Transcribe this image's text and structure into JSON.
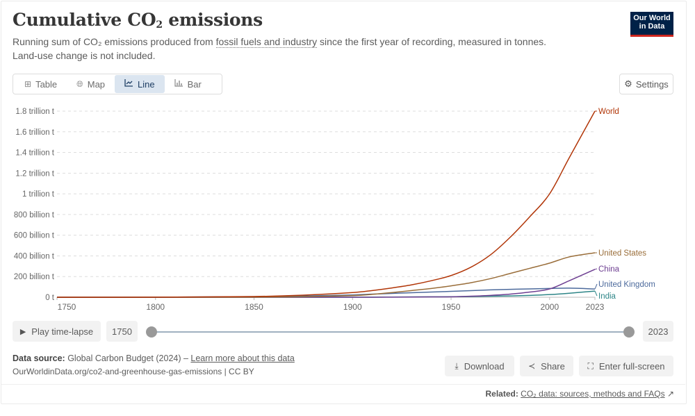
{
  "header": {
    "title_main": "Cumulative CO",
    "title_sub": "2",
    "title_end": " emissions",
    "subtitle_pre": "Running sum of CO₂ emissions produced from ",
    "subtitle_link": "fossil fuels and industry",
    "subtitle_post": " since the first year of recording, measured in tonnes.",
    "subtitle_line2": "Land-use change is not included.",
    "logo_line1": "Our World",
    "logo_line2": "in Data"
  },
  "tabs": [
    {
      "label": "Table",
      "icon": "table-icon",
      "active": false
    },
    {
      "label": "Map",
      "icon": "globe-icon",
      "active": false
    },
    {
      "label": "Line",
      "icon": "line-chart-icon",
      "active": true
    },
    {
      "label": "Bar",
      "icon": "bar-chart-icon",
      "active": false
    }
  ],
  "settings_label": "Settings",
  "chart_data": {
    "type": "line",
    "title": "Cumulative CO₂ emissions",
    "xlabel": "",
    "ylabel": "",
    "xlim": [
      1750,
      2023
    ],
    "ylim": [
      0,
      1.8
    ],
    "y_unit": "trillion t",
    "x_ticks": [
      1750,
      1800,
      1850,
      1900,
      1950,
      2000,
      2023
    ],
    "y_ticks": [
      {
        "value": 0,
        "label": "0 t"
      },
      {
        "value": 0.2,
        "label": "200 billion t"
      },
      {
        "value": 0.4,
        "label": "400 billion t"
      },
      {
        "value": 0.6,
        "label": "600 billion t"
      },
      {
        "value": 0.8,
        "label": "800 billion t"
      },
      {
        "value": 1.0,
        "label": "1 trillion t"
      },
      {
        "value": 1.2,
        "label": "1.2 trillion t"
      },
      {
        "value": 1.4,
        "label": "1.4 trillion t"
      },
      {
        "value": 1.6,
        "label": "1.6 trillion t"
      },
      {
        "value": 1.8,
        "label": "1.8 trillion t"
      }
    ],
    "grid": true,
    "legend": "right-inline",
    "x": [
      1750,
      1800,
      1850,
      1875,
      1900,
      1910,
      1920,
      1930,
      1940,
      1950,
      1960,
      1970,
      1980,
      1990,
      2000,
      2010,
      2023
    ],
    "series": [
      {
        "name": "World",
        "color": "#b13507",
        "values": [
          0.0,
          0.001,
          0.007,
          0.02,
          0.045,
          0.065,
          0.09,
          0.12,
          0.16,
          0.21,
          0.29,
          0.41,
          0.58,
          0.78,
          1.0,
          1.35,
          1.8
        ]
      },
      {
        "name": "United States",
        "color": "#996d39",
        "values": [
          0.0,
          0.0,
          0.001,
          0.005,
          0.016,
          0.028,
          0.045,
          0.065,
          0.085,
          0.11,
          0.14,
          0.18,
          0.23,
          0.28,
          0.33,
          0.39,
          0.43
        ]
      },
      {
        "name": "China",
        "color": "#6d3e91",
        "values": [
          0.0,
          0.0,
          0.0,
          0.0,
          0.0,
          0.0,
          0.001,
          0.002,
          0.003,
          0.004,
          0.01,
          0.018,
          0.03,
          0.05,
          0.08,
          0.16,
          0.27
        ]
      },
      {
        "name": "United Kingdom",
        "color": "#4c6a9c",
        "values": [
          0.0,
          0.001,
          0.006,
          0.012,
          0.022,
          0.03,
          0.037,
          0.044,
          0.05,
          0.057,
          0.064,
          0.071,
          0.076,
          0.081,
          0.085,
          0.088,
          0.08
        ]
      },
      {
        "name": "India",
        "color": "#2d8587",
        "values": [
          0.0,
          0.0,
          0.0,
          0.0,
          0.001,
          0.001,
          0.002,
          0.003,
          0.004,
          0.005,
          0.007,
          0.01,
          0.013,
          0.018,
          0.026,
          0.039,
          0.06
        ]
      }
    ]
  },
  "timeline": {
    "play_label": "Play time-lapse",
    "start_year": "1750",
    "end_year": "2023"
  },
  "footer": {
    "source_label": "Data source:",
    "source_text": " Global Carbon Budget (2024) – ",
    "learn_more": "Learn more about this data",
    "origin": "OurWorldinData.org/co2-and-greenhouse-gas-emissions | CC BY",
    "download": "Download",
    "share": "Share",
    "fullscreen": "Enter full-screen",
    "related_label": "Related:",
    "related_link": "CO₂ data: sources, methods and FAQs"
  }
}
